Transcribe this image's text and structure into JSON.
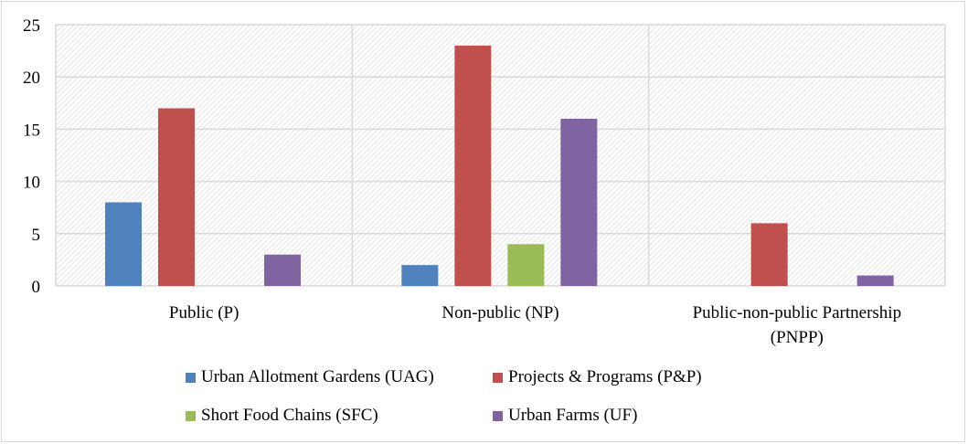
{
  "chart_data": {
    "type": "bar",
    "categories": [
      "Public (P)",
      "Non-public (NP)",
      "Public-non-public Partnership (PNPP)"
    ],
    "category_lines": [
      [
        "Public (P)"
      ],
      [
        "Non-public (NP)"
      ],
      [
        "Public-non-public Partnership",
        "(PNPP)"
      ]
    ],
    "series": [
      {
        "name": "Urban Allotment Gardens (UAG)",
        "color": "#4f81bd",
        "values": [
          8,
          2,
          0
        ]
      },
      {
        "name": "Projects & Programs (P&P)",
        "color": "#c0504d",
        "values": [
          17,
          23,
          6
        ]
      },
      {
        "name": "Short Food Chains (SFC)",
        "color": "#9bbb59",
        "values": [
          0,
          4,
          0
        ]
      },
      {
        "name": "Urban Farms (UF)",
        "color": "#8064a2",
        "values": [
          3,
          16,
          1
        ]
      }
    ],
    "ylim": [
      0,
      25
    ],
    "yticks": [
      0,
      5,
      10,
      15,
      20,
      25
    ],
    "grid": true,
    "legend_position": "bottom",
    "title": "",
    "xlabel": "",
    "ylabel": ""
  }
}
